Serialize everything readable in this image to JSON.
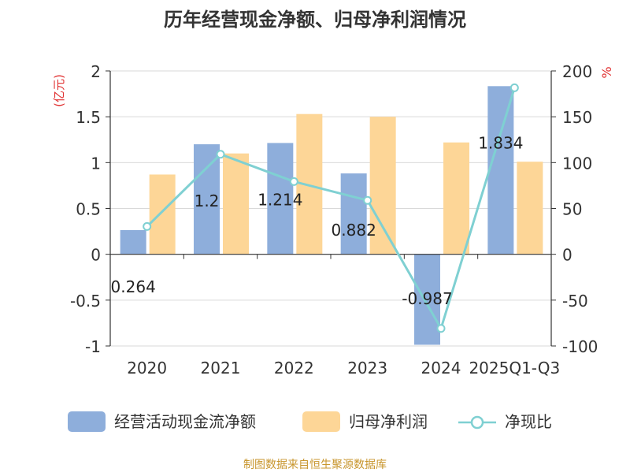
{
  "chart_data": {
    "type": "bar",
    "title": "历年经营现金净额、归母净利润情况",
    "left_axis_unit": "(亿元)",
    "right_axis_unit": "%",
    "categories": [
      "2020",
      "2021",
      "2022",
      "2023",
      "2024",
      "2025Q1-Q3"
    ],
    "y_left": {
      "range": [
        -1,
        2
      ],
      "ticks": [
        "-1",
        "-0.5",
        "0",
        "0.5",
        "1",
        "1.5",
        "2"
      ]
    },
    "y_right": {
      "range": [
        -100,
        200
      ],
      "ticks": [
        "-100",
        "-50",
        "0",
        "50",
        "100",
        "150",
        "200"
      ]
    },
    "grid": true,
    "legend_position": "bottom",
    "series": [
      {
        "name": "经营活动现金流净额",
        "kind": "bar",
        "axis": "left",
        "color": "#8eaedb",
        "values": [
          0.264,
          1.2,
          1.214,
          0.882,
          -0.987,
          1.834
        ],
        "labels": [
          "0.264",
          "1.2",
          "1.214",
          "0.882",
          "-0.987",
          "1.834"
        ]
      },
      {
        "name": "归母净利润",
        "kind": "bar",
        "axis": "left",
        "color": "#fdd697",
        "values": [
          0.87,
          1.1,
          1.53,
          1.5,
          1.22,
          1.01
        ]
      },
      {
        "name": "净现比",
        "kind": "line",
        "axis": "right",
        "color": "#7fd0d2",
        "values": [
          30.3,
          109.1,
          79.3,
          58.8,
          -80.9,
          181.6
        ]
      }
    ]
  },
  "footer": {
    "source": "制图数据来自恒生聚源数据库"
  },
  "colors": {
    "axis": "#333333",
    "grid": "#d9d9d9",
    "unit": "#e03030",
    "source": "#c8962e"
  }
}
